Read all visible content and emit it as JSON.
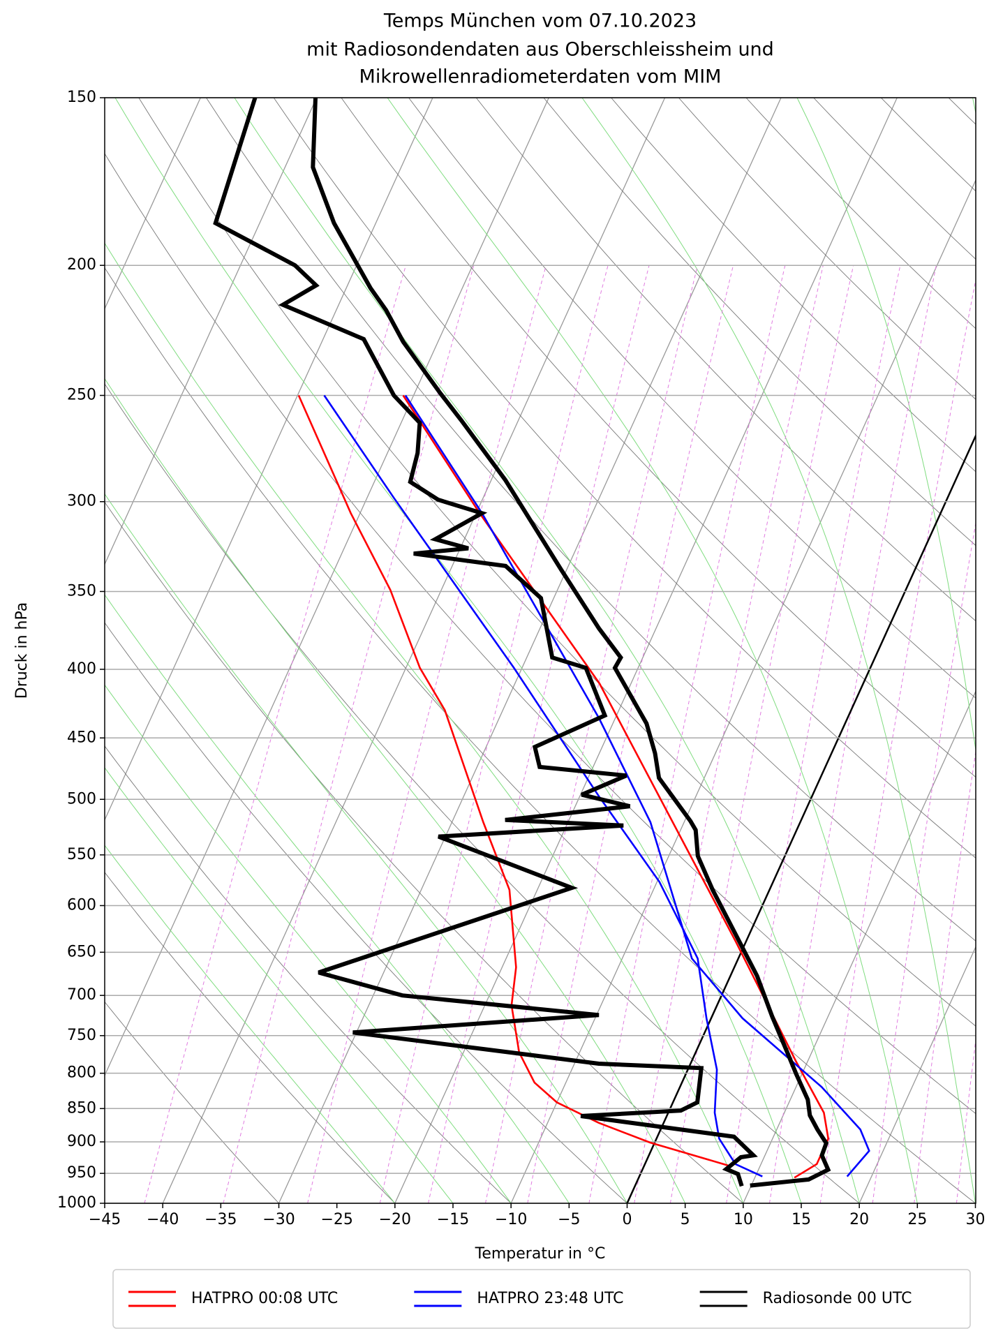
{
  "chart_data": {
    "type": "skewt",
    "title": "Temps München vom 07.10.2023",
    "subtitle": [
      "mit Radiosondendaten aus Oberschleissheim und",
      "Mikrowellenradiometerdaten vom MIM"
    ],
    "x_label": "Temperatur in °C",
    "y_label": "Druck in hPa",
    "xlim": [
      -45,
      30
    ],
    "ylim": [
      1000,
      150
    ],
    "log_y": true,
    "grid": true,
    "legend": "bottom",
    "xticks": [
      {
        "value": -45,
        "label": "−45"
      },
      {
        "value": -40,
        "label": "−40"
      },
      {
        "value": -35,
        "label": "−35"
      },
      {
        "value": -30,
        "label": "−30"
      },
      {
        "value": -25,
        "label": "−25"
      },
      {
        "value": -20,
        "label": "−20"
      },
      {
        "value": -15,
        "label": "−15"
      },
      {
        "value": -10,
        "label": "−10"
      },
      {
        "value": -5,
        "label": "−5"
      },
      0,
      5,
      10,
      15,
      20,
      25,
      30
    ],
    "yticks": [
      150,
      200,
      250,
      300,
      350,
      400,
      450,
      500,
      550,
      600,
      650,
      700,
      750,
      800,
      850,
      900,
      950,
      1000
    ],
    "series": [
      {
        "name": "HATPRO 00:08 UTC",
        "color": "#ff0000",
        "linewidth": 2.6,
        "temperature": {
          "pressure": [
            250,
            306,
            410,
            638,
            784,
            856,
            895,
            935,
            957
          ],
          "values": [
            -50.9,
            -39.7,
            -22.7,
            -0.9,
            9.0,
            13.4,
            14.8,
            14.8,
            13.4
          ]
        },
        "dewpoint": {
          "pressure": [
            250,
            306,
            349,
            399,
            429,
            520,
            584,
            667,
            712,
            772,
            813,
            841,
            871,
            901,
            937
          ],
          "values": [
            -59.9,
            -50.8,
            -44.4,
            -38.8,
            -35.0,
            -27.3,
            -22.4,
            -18.8,
            -17.7,
            -15.2,
            -12.7,
            -10.0,
            -5.6,
            -0.4,
            7.2
          ]
        }
      },
      {
        "name": "HATPRO 23:48 UTC",
        "color": "#0000ff",
        "linewidth": 2.6,
        "temperature": {
          "pressure": [
            250,
            306,
            435,
            520,
            657,
            728,
            819,
            881,
            914,
            955
          ],
          "values": [
            -50.7,
            -39.5,
            -21.4,
            -12.9,
            -4.0,
            2.7,
            12.2,
            17.2,
            18.8,
            17.9
          ]
        },
        "dewpoint": {
          "pressure": [
            250,
            298,
            399,
            497,
            576,
            657,
            728,
            795,
            856,
            895,
            935,
            955
          ],
          "values": [
            -57.7,
            -47.7,
            -30.7,
            -18.4,
            -9.8,
            -3.5,
            -0.4,
            2.5,
            4.0,
            5.4,
            7.8,
            10.6
          ]
        }
      },
      {
        "name": "Radiosonde 00 UTC",
        "color": "#000000",
        "linewidth": 6,
        "temperature": {
          "pressure": [
            970,
            960,
            944,
            921,
            902,
            881,
            860,
            837,
            801,
            772,
            726,
            677,
            584,
            551,
            527,
            519,
            482,
            462,
            439,
            399,
            392,
            373,
            337,
            289,
            261,
            249,
            228,
            216,
            208,
            186,
            169,
            150
          ],
          "values": [
            9.9,
            14.7,
            16.0,
            14.9,
            14.8,
            13.5,
            12.3,
            11.5,
            9.5,
            7.9,
            5.2,
            2.3,
            -4.9,
            -7.5,
            -8.7,
            -9.5,
            -13.9,
            -15.2,
            -17.1,
            -22.0,
            -21.9,
            -24.9,
            -30.5,
            -38.8,
            -44.9,
            -47.8,
            -53.0,
            -55.7,
            -57.9,
            -63.6,
            -67.6,
            -70.1
          ]
        },
        "dewpoint": {
          "pressure": [
            971,
            951,
            943,
            924,
            921,
            892,
            861,
            853,
            841,
            793,
            787,
            746,
            724,
            700,
            673,
            582,
            533,
            523,
            518,
            506,
            496,
            480,
            473,
            457,
            433,
            399,
            392,
            354,
            335,
            328,
            325,
            320,
            306,
            299,
            290,
            276,
            262,
            250,
            227,
            214,
            207,
            200,
            186,
            150
          ],
          "values": [
            9.2,
            8.4,
            7.2,
            8.0,
            9.0,
            6.6,
            -7.4,
            1.0,
            2.1,
            1.1,
            -7.9,
            -30.3,
            -9.8,
            -27.5,
            -35.6,
            -17.1,
            -30.6,
            -15.1,
            -25.5,
            -15.3,
            -19.9,
            -16.8,
            -24.6,
            -25.8,
            -21.0,
            -24.5,
            -27.8,
            -31.1,
            -35.4,
            -43.8,
            -39.3,
            -42.5,
            -39.5,
            -43.8,
            -46.9,
            -47.4,
            -48.4,
            -51.7,
            -56.5,
            -64.8,
            -62.7,
            -65.3,
            -73.8,
            -75.3
          ]
        }
      }
    ]
  }
}
